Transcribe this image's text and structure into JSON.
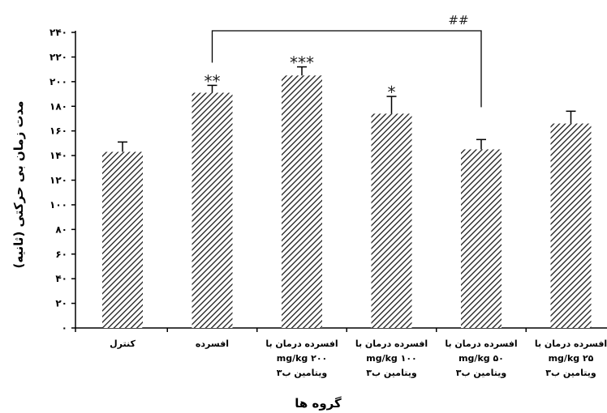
{
  "chart_data": {
    "type": "bar",
    "xlabel": "گروه ها",
    "ylabel": "مدت زمان بی حرکتی (ثانیه)",
    "ylim": [
      0,
      240
    ],
    "yticks": [
      0,
      20,
      40,
      60,
      80,
      100,
      120,
      140,
      160,
      180,
      200,
      220,
      240
    ],
    "ytick_labels": [
      "۰",
      "۲۰",
      "۴۰",
      "۶۰",
      "۸۰",
      "۱۰۰",
      "۱۲۰",
      "۱۴۰",
      "۱۶۰",
      "۱۸۰",
      "۲۰۰",
      "۲۲۰",
      "۲۴۰"
    ],
    "categories": [
      [
        "کنترل"
      ],
      [
        "افسرده"
      ],
      [
        "افسرده درمان با",
        "mg/kg ۲۰۰",
        "ویتامین ب۳"
      ],
      [
        "افسرده درمان با",
        "mg/kg ۱۰۰",
        "ویتامین ب۳"
      ],
      [
        "افسرده درمان با",
        "mg/kg ۵۰",
        "ویتامین ب۳"
      ],
      [
        "افسرده درمان با",
        "mg/kg ۲۵",
        "ویتامین ب۳"
      ]
    ],
    "values": [
      143,
      191,
      205,
      174,
      145,
      166
    ],
    "errors": [
      8,
      6,
      7,
      14,
      8,
      10
    ],
    "significance": [
      "",
      "**",
      "***",
      "*",
      "",
      ""
    ],
    "comparison": {
      "from_index": 1,
      "to_index": 4,
      "label": "##"
    },
    "bar_fill": "diagonal-hatch",
    "bar_color": "#1a1a1a",
    "grid": false
  }
}
